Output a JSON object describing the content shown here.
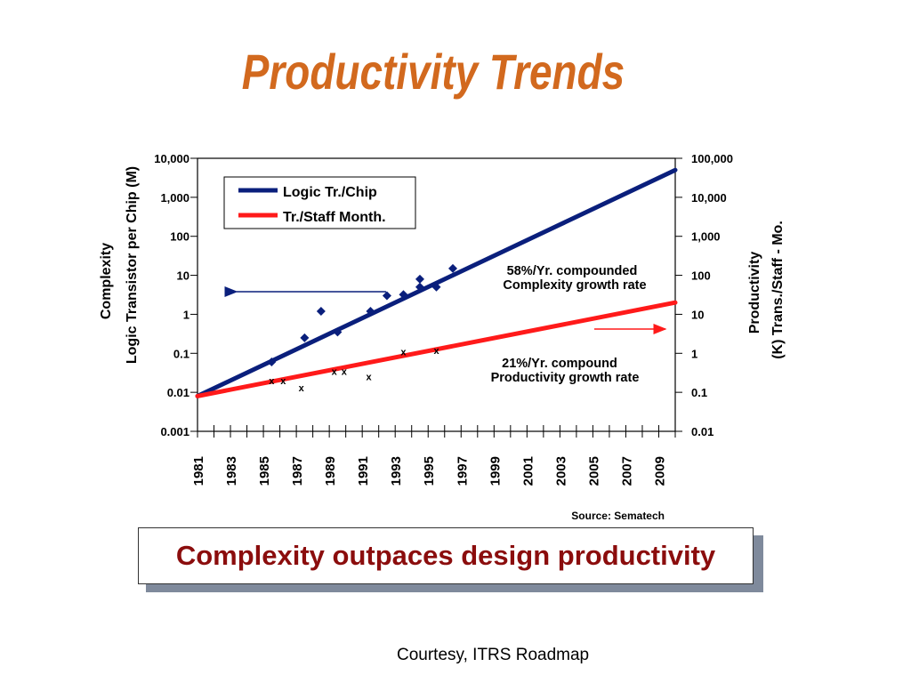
{
  "title": "Productivity Trends",
  "callout": "Complexity outpaces design productivity",
  "courtesy": "Courtesy, ITRS Roadmap",
  "colors": {
    "title": "#d2691e",
    "complexity": "#0a1f7c",
    "productivity": "#ff1a1a",
    "callout_text": "#8b0d0d",
    "callout_shadow": "#7f8a9c"
  },
  "chart_data": {
    "type": "line",
    "x_tick_labels": [
      "1981",
      "1983",
      "1985",
      "1987",
      "1989",
      "1991",
      "1993",
      "1995",
      "1997",
      "1999",
      "2001",
      "2003",
      "2005",
      "2007",
      "2009"
    ],
    "xlim": [
      1981,
      2010
    ],
    "left_axis": {
      "label_lines": [
        "Complexity",
        "Logic Transistor per Chip (M)"
      ],
      "scale": "log",
      "range": [
        0.001,
        10000
      ],
      "tick_labels": [
        "0.001",
        "0.01",
        "0.1",
        "1",
        "10",
        "100",
        "1,000",
        "10,000"
      ]
    },
    "right_axis": {
      "label_lines": [
        "Productivity",
        "(K) Trans./Staff - Mo."
      ],
      "scale": "log",
      "range": [
        0.01,
        100000
      ],
      "tick_labels": [
        "0.01",
        "0.1",
        "1",
        "10",
        "100",
        "1,000",
        "10,000",
        "100,000"
      ]
    },
    "series": [
      {
        "name": "Logic Tr./Chip",
        "axis": "left",
        "color": "#0a1f7c",
        "x": [
          1981,
          2010
        ],
        "y": [
          0.008,
          5000
        ]
      },
      {
        "name": "Tr./Staff Month.",
        "axis": "right",
        "color": "#ff1a1a",
        "x": [
          1981,
          2010
        ],
        "y": [
          0.08,
          20
        ]
      }
    ],
    "complexity_points": {
      "marker": "diamond",
      "axis": "left",
      "x": [
        1985.5,
        1987.5,
        1988.5,
        1989.5,
        1991.5,
        1992.5,
        1993.5,
        1994.5,
        1994.5,
        1995.5,
        1996.5
      ],
      "y": [
        0.06,
        0.25,
        1.2,
        0.35,
        1.2,
        3,
        3.2,
        5,
        8,
        5,
        15
      ]
    },
    "productivity_points": {
      "marker": "x",
      "axis": "right",
      "x": [
        1985.5,
        1986.2,
        1987.3,
        1989.3,
        1989.9,
        1991.4,
        1993.5,
        1995.5
      ],
      "y": [
        0.2,
        0.2,
        0.13,
        0.35,
        0.35,
        0.25,
        1.1,
        1.2
      ]
    },
    "annotations": [
      {
        "lines": [
          "58%/Yr. compounded",
          "Complexity growth rate"
        ]
      },
      {
        "lines": [
          "21%/Yr. compound",
          "Productivity growth rate"
        ]
      }
    ],
    "legend": {
      "placement": "top-left"
    },
    "source": "Source: Sematech",
    "grid": false
  }
}
